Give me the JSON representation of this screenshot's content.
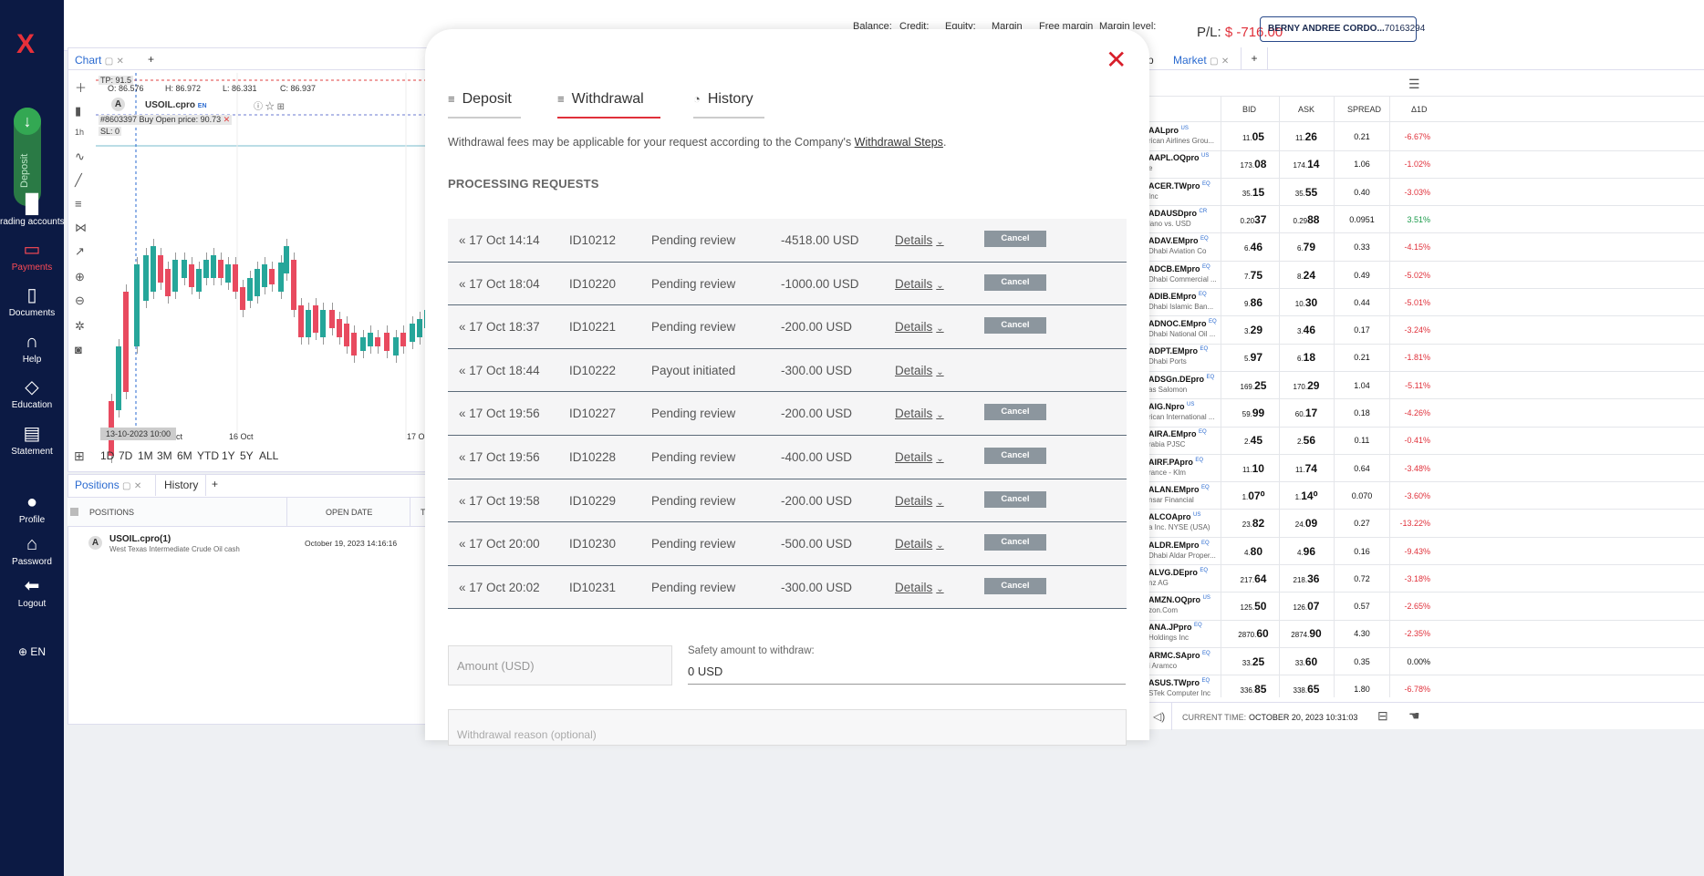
{
  "sidebar": {
    "logo": "X",
    "deposit_label": "Deposit",
    "items": [
      {
        "label": "rading accounts",
        "icon": "bar-chart-icon"
      },
      {
        "label": "Payments",
        "icon": "wallet-icon"
      },
      {
        "label": "Documents",
        "icon": "document-icon"
      },
      {
        "label": "Help",
        "icon": "headset-icon"
      },
      {
        "label": "Education",
        "icon": "graduation-cap-icon"
      },
      {
        "label": "Statement",
        "icon": "clipboard-icon"
      },
      {
        "label": "Profile",
        "icon": "user-icon"
      },
      {
        "label": "Password",
        "icon": "lock-icon"
      },
      {
        "label": "Logout",
        "icon": "logout-icon"
      }
    ],
    "language": "EN"
  },
  "topbar": {
    "balance": "Balance:",
    "credit": "Credit:",
    "equity": "Equity:",
    "margin": "Margin",
    "free_margin": "Free margin",
    "margin_level": "Margin level:",
    "pl_label": "P/L:",
    "pl_value": "$ -716.00",
    "account_name": "BERNY ANDREE CORDO...",
    "account_id": "70163294"
  },
  "chart": {
    "tab": "Chart",
    "add": "+",
    "interval": "1h",
    "tp": "TP: 91.5",
    "o": "O: 86.576",
    "h": "H: 86.972",
    "l": "L: 86.331",
    "c": "C: 86.937",
    "symbol": "USOIL.cpro",
    "symbol_lang": "EN",
    "order": "#8603397 Buy",
    "open_price": "Open price: 90.73",
    "sl": "SL: 0",
    "x_labels": [
      "Oct",
      "16 Oct",
      "17 O"
    ],
    "crosshair_date": "13-10-2023 10:00",
    "ranges": [
      "1D",
      "7D",
      "1M",
      "3M",
      "6M",
      "YTD",
      "1Y",
      "5Y",
      "ALL"
    ]
  },
  "positions": {
    "tab": "Positions",
    "history_tab": "History",
    "add": "+",
    "col_positions": "POSITIONS",
    "col_open_date": "OPEN DATE",
    "col_t": "T",
    "row_symbol": "USOIL.cpro(1)",
    "row_desc": "West Texas Intermediate Crude Oil cash",
    "row_date": "October 19, 2023 14:16:16"
  },
  "modal": {
    "tabs": [
      "Deposit",
      "Withdrawal",
      "History"
    ],
    "fee_text": "Withdrawal fees may be applicable for your request according to the Company's ",
    "fee_link": "Withdrawal Steps",
    "fee_end": ".",
    "section_title": "PROCESSING REQUESTS",
    "details_label": "Details",
    "cancel_label": "Cancel",
    "requests": [
      {
        "date": "17 Oct 14:14",
        "id": "ID10212",
        "status": "Pending review",
        "amount": "-4518.00 USD",
        "cancel": true
      },
      {
        "date": "17 Oct 18:04",
        "id": "ID10220",
        "status": "Pending review",
        "amount": "-1000.00 USD",
        "cancel": true
      },
      {
        "date": "17 Oct 18:37",
        "id": "ID10221",
        "status": "Pending review",
        "amount": "-200.00 USD",
        "cancel": true
      },
      {
        "date": "17 Oct 18:44",
        "id": "ID10222",
        "status": "Payout initiated",
        "amount": "-300.00 USD",
        "cancel": false
      },
      {
        "date": "17 Oct 19:56",
        "id": "ID10227",
        "status": "Pending review",
        "amount": "-200.00 USD",
        "cancel": true
      },
      {
        "date": "17 Oct 19:56",
        "id": "ID10228",
        "status": "Pending review",
        "amount": "-400.00 USD",
        "cancel": true
      },
      {
        "date": "17 Oct 19:58",
        "id": "ID10229",
        "status": "Pending review",
        "amount": "-200.00 USD",
        "cancel": true
      },
      {
        "date": "17 Oct 20:00",
        "id": "ID10230",
        "status": "Pending review",
        "amount": "-500.00 USD",
        "cancel": true
      },
      {
        "date": "17 Oct 20:02",
        "id": "ID10231",
        "status": "Pending review",
        "amount": "-300.00 USD",
        "cancel": true
      }
    ],
    "amount_placeholder": "Amount (USD)",
    "safety_label": "Safety amount to withdraw:",
    "safety_value": "0 USD",
    "reason_placeholder": "Withdrawal reason (optional)"
  },
  "market": {
    "tab_prev": "p",
    "tab": "Market",
    "add": "+",
    "headers": [
      "BID",
      "ASK",
      "SPREAD",
      "Δ1D"
    ],
    "rows": [
      {
        "sym": "AALpro",
        "tag": "US",
        "sub": "rican Airlines Grou...",
        "bid_a": "11.",
        "bid_b": "05",
        "ask_a": "11.",
        "ask_b": "26",
        "spread": "0.21",
        "chg": "-6.67%",
        "dir": "neg"
      },
      {
        "sym": "AAPL.OQpro",
        "tag": "US",
        "sub": "e",
        "bid_a": "173.",
        "bid_b": "08",
        "ask_a": "174.",
        "ask_b": "14",
        "spread": "1.06",
        "chg": "-1.02%",
        "dir": "neg"
      },
      {
        "sym": "ACER.TWpro",
        "tag": "EQ",
        "sub": "Inc",
        "bid_a": "35.",
        "bid_b": "15",
        "ask_a": "35.",
        "ask_b": "55",
        "spread": "0.40",
        "chg": "-3.03%",
        "dir": "neg"
      },
      {
        "sym": "ADAUSDpro",
        "tag": "CR",
        "sub": "lano vs. USD",
        "bid_a": "0.20",
        "bid_b": "37",
        "ask_a": "0.29",
        "ask_b": "88",
        "spread": "0.0951",
        "chg": "3.51%",
        "dir": "pos"
      },
      {
        "sym": "ADAV.EMpro",
        "tag": "EQ",
        "sub": "Dhabi Aviation Co",
        "bid_a": "6.",
        "bid_b": "46",
        "ask_a": "6.",
        "ask_b": "79",
        "spread": "0.33",
        "chg": "-4.15%",
        "dir": "neg"
      },
      {
        "sym": "ADCB.EMpro",
        "tag": "EQ",
        "sub": "Dhabi Commercial ...",
        "bid_a": "7.",
        "bid_b": "75",
        "ask_a": "8.",
        "ask_b": "24",
        "spread": "0.49",
        "chg": "-5.02%",
        "dir": "neg"
      },
      {
        "sym": "ADIB.EMpro",
        "tag": "EQ",
        "sub": "Dhabi Islamic Ban...",
        "bid_a": "9.",
        "bid_b": "86",
        "ask_a": "10.",
        "ask_b": "30",
        "spread": "0.44",
        "chg": "-5.01%",
        "dir": "neg"
      },
      {
        "sym": "ADNOC.EMpro",
        "tag": "EQ",
        "sub": "Dhabi National Oil ...",
        "bid_a": "3.",
        "bid_b": "29",
        "ask_a": "3.",
        "ask_b": "46",
        "spread": "0.17",
        "chg": "-3.24%",
        "dir": "neg"
      },
      {
        "sym": "ADPT.EMpro",
        "tag": "EQ",
        "sub": "Dhabi Ports",
        "bid_a": "5.",
        "bid_b": "97",
        "ask_a": "6.",
        "ask_b": "18",
        "spread": "0.21",
        "chg": "-1.81%",
        "dir": "neg"
      },
      {
        "sym": "ADSGn.DEpro",
        "tag": "EQ",
        "sub": "as Salomon",
        "bid_a": "169.",
        "bid_b": "25",
        "ask_a": "170.",
        "ask_b": "29",
        "spread": "1.04",
        "chg": "-5.11%",
        "dir": "neg"
      },
      {
        "sym": "AIG.Npro",
        "tag": "US",
        "sub": "rican International ...",
        "bid_a": "59.",
        "bid_b": "99",
        "ask_a": "60.",
        "ask_b": "17",
        "spread": "0.18",
        "chg": "-4.26%",
        "dir": "neg"
      },
      {
        "sym": "AIRA.EMpro",
        "tag": "EQ",
        "sub": "rabia PJSC",
        "bid_a": "2.",
        "bid_b": "45",
        "ask_a": "2.",
        "ask_b": "56",
        "spread": "0.11",
        "chg": "-0.41%",
        "dir": "neg"
      },
      {
        "sym": "AIRF.PApro",
        "tag": "EQ",
        "sub": "rance - Klm",
        "bid_a": "11.",
        "bid_b": "10",
        "ask_a": "11.",
        "ask_b": "74",
        "spread": "0.64",
        "chg": "-3.48%",
        "dir": "neg"
      },
      {
        "sym": "ALAN.EMpro",
        "tag": "EQ",
        "sub": "nsar Financial",
        "bid_a": "1.",
        "bid_b": "07⁰",
        "ask_a": "1.",
        "ask_b": "14⁰",
        "spread": "0.070",
        "chg": "-3.60%",
        "dir": "neg"
      },
      {
        "sym": "ALCOApro",
        "tag": "US",
        "sub": "a Inc. NYSE (USA)",
        "bid_a": "23.",
        "bid_b": "82",
        "ask_a": "24.",
        "ask_b": "09",
        "spread": "0.27",
        "chg": "-13.22%",
        "dir": "neg"
      },
      {
        "sym": "ALDR.EMpro",
        "tag": "EQ",
        "sub": "Dhabi Aldar Proper...",
        "bid_a": "4.",
        "bid_b": "80",
        "ask_a": "4.",
        "ask_b": "96",
        "spread": "0.16",
        "chg": "-9.43%",
        "dir": "neg"
      },
      {
        "sym": "ALVG.DEpro",
        "tag": "EQ",
        "sub": "nz AG",
        "bid_a": "217.",
        "bid_b": "64",
        "ask_a": "218.",
        "ask_b": "36",
        "spread": "0.72",
        "chg": "-3.18%",
        "dir": "neg"
      },
      {
        "sym": "AMZN.OQpro",
        "tag": "US",
        "sub": "zon.Com",
        "bid_a": "125.",
        "bid_b": "50",
        "ask_a": "126.",
        "ask_b": "07",
        "spread": "0.57",
        "chg": "-2.65%",
        "dir": "neg"
      },
      {
        "sym": "ANA.JPpro",
        "tag": "EQ",
        "sub": "Holdings Inc",
        "bid_a": "2870.",
        "bid_b": "60",
        "ask_a": "2874.",
        "ask_b": "90",
        "spread": "4.30",
        "chg": "-2.35%",
        "dir": "neg"
      },
      {
        "sym": "ARMC.SApro",
        "tag": "EQ",
        "sub": "i Aramco",
        "bid_a": "33.",
        "bid_b": "25",
        "ask_a": "33.",
        "ask_b": "60",
        "spread": "0.35",
        "chg": "0.00%",
        "dir": "zero"
      },
      {
        "sym": "ASUS.TWpro",
        "tag": "EQ",
        "sub": "STek Computer Inc",
        "bid_a": "336.",
        "bid_b": "85",
        "ask_a": "338.",
        "ask_b": "65",
        "spread": "1.80",
        "chg": "-6.78%",
        "dir": "neg"
      }
    ],
    "current_time_label": "CURRENT TIME:",
    "current_time": "OCTOBER 20, 2023 10:31:03"
  }
}
